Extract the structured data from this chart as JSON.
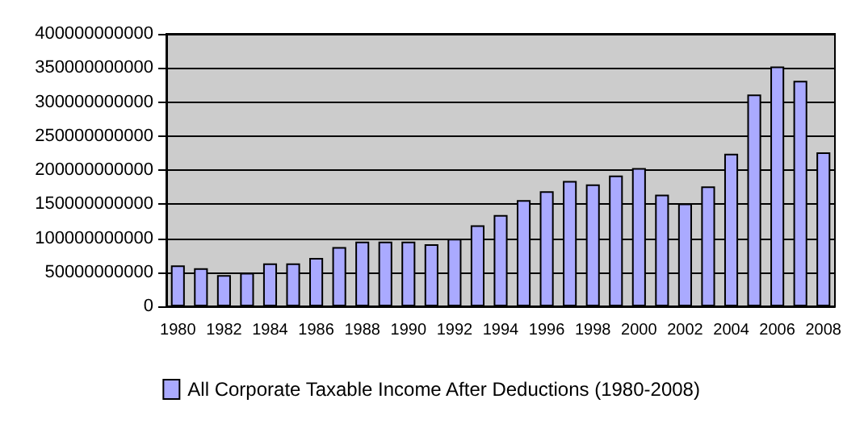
{
  "chart_data": {
    "type": "bar",
    "categories": [
      "1980",
      null,
      "1982",
      null,
      "1984",
      null,
      "1986",
      null,
      "1988",
      null,
      "1990",
      null,
      "1992",
      null,
      "1994",
      null,
      "1996",
      null,
      "1998",
      null,
      "2000",
      null,
      "2002",
      null,
      "2004",
      null,
      "2006",
      null,
      "2008"
    ],
    "series": [
      {
        "name": "All Corporate Taxable Income After Deductions (1980-2008)",
        "color": "#aaaaff",
        "values": [
          60000000000,
          56000000000,
          46000000000,
          49000000000,
          63000000000,
          63000000000,
          71000000000,
          87000000000,
          95000000000,
          95000000000,
          95000000000,
          91000000000,
          99000000000,
          119000000000,
          134000000000,
          156000000000,
          169000000000,
          184000000000,
          179000000000,
          192000000000,
          203000000000,
          164000000000,
          151000000000,
          176000000000,
          224000000000,
          311000000000,
          352000000000,
          331000000000,
          226000000000
        ]
      }
    ],
    "ylim": [
      0,
      400000000000
    ],
    "yticks": [
      0,
      50000000000,
      100000000000,
      150000000000,
      200000000000,
      250000000000,
      300000000000,
      350000000000,
      400000000000
    ],
    "grid": "y",
    "legend": "bottom"
  }
}
